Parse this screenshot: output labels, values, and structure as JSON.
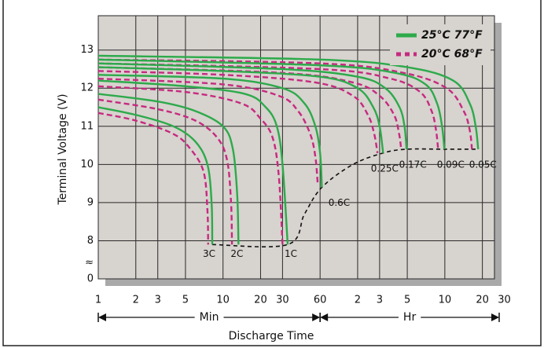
{
  "chart_data": {
    "type": "line",
    "y_label": "Terminal Voltage (V)",
    "x_label": "Discharge Time",
    "log_x": true,
    "grid": true,
    "legend": "top-right",
    "xlim": [
      1,
      1500
    ],
    "xticks": [
      1,
      2,
      3,
      5,
      10,
      20,
      30,
      60,
      {
        "value": 120,
        "label": "2"
      },
      {
        "value": 180,
        "label": "3"
      },
      {
        "value": 300,
        "label": "5"
      },
      {
        "value": 600,
        "label": "10"
      },
      {
        "value": 1200,
        "label": "20"
      },
      {
        "value": 1800,
        "label": "30"
      }
    ],
    "x_groups": [
      {
        "label": "Min",
        "from": 1,
        "to": 60
      },
      {
        "label": "Hr",
        "from": 60,
        "to": 1800
      }
    ],
    "ylim": [
      0,
      13.9
    ],
    "yticks": [
      0,
      8,
      9,
      10,
      11,
      12,
      13
    ],
    "y_break": {
      "label": "≈",
      "from": 0,
      "to": 7
    },
    "series": [
      {
        "name": "25°C 77°F",
        "color": "#2daa4b",
        "dashed": false,
        "curves": [
          {
            "label": "3C",
            "x": [
              1,
              2,
              4,
              6,
              7.5,
              8.1,
              8.2
            ],
            "values": [
              11.5,
              11.3,
              11.0,
              10.6,
              10.0,
              9.0,
              7.9
            ]
          },
          {
            "label": "2C",
            "x": [
              1,
              3,
              6,
              10,
              12,
              13,
              13.3
            ],
            "values": [
              11.85,
              11.65,
              11.4,
              11.0,
              10.4,
              9.2,
              7.9
            ]
          },
          {
            "label": "1C",
            "x": [
              1,
              5,
              15,
              22,
              27,
              30,
              33
            ],
            "values": [
              12.2,
              12.05,
              11.85,
              11.5,
              11.0,
              10.0,
              7.9
            ]
          },
          {
            "label": "0.6C",
            "x": [
              1,
              10,
              30,
              45,
              55,
              60,
              62
            ],
            "values": [
              12.35,
              12.25,
              12.0,
              11.6,
              11.0,
              10.3,
              9.4
            ]
          },
          {
            "label": "0.25C",
            "x": [
              1,
              10,
              60,
              120,
              160,
              180,
              192
            ],
            "values": [
              12.55,
              12.45,
              12.3,
              12.0,
              11.5,
              11.0,
              10.3
            ]
          },
          {
            "label": "0.17C",
            "x": [
              1,
              30,
              120,
              200,
              260,
              285,
              296
            ],
            "values": [
              12.65,
              12.5,
              12.3,
              12.0,
              11.5,
              11.0,
              10.4
            ]
          },
          {
            "label": "0.09C",
            "x": [
              1,
              60,
              240,
              420,
              520,
              570,
              595
            ],
            "values": [
              12.75,
              12.6,
              12.4,
              12.1,
              11.6,
              11.0,
              10.4
            ]
          },
          {
            "label": "0.05C",
            "x": [
              1,
              60,
              300,
              700,
              950,
              1060,
              1110
            ],
            "values": [
              12.85,
              12.75,
              12.55,
              12.2,
              11.6,
              11.0,
              10.4
            ]
          }
        ]
      },
      {
        "name": "20°C 68°F",
        "color": "#c62a80",
        "dashed": true,
        "curves": [
          {
            "x": [
              1,
              2,
              4,
              5.5,
              7,
              7.5,
              7.6
            ],
            "values": [
              11.35,
              11.15,
              10.8,
              10.4,
              9.8,
              8.8,
              7.9
            ]
          },
          {
            "x": [
              1,
              3,
              6,
              9,
              10.8,
              11.6,
              11.8
            ],
            "values": [
              11.7,
              11.45,
              11.15,
              10.7,
              10.1,
              9.0,
              7.9
            ]
          },
          {
            "x": [
              1,
              5,
              14,
              20,
              25,
              28,
              30
            ],
            "values": [
              12.05,
              11.9,
              11.6,
              11.2,
              10.7,
              9.7,
              7.9
            ]
          },
          {
            "x": [
              1,
              10,
              28,
              40,
              50,
              55,
              57.4
            ],
            "values": [
              12.25,
              12.1,
              11.8,
              11.4,
              10.8,
              10.2,
              9.5
            ]
          },
          {
            "x": [
              1,
              10,
              55,
              110,
              145,
              163,
              173
            ],
            "values": [
              12.45,
              12.35,
              12.15,
              11.8,
              11.3,
              10.8,
              10.3
            ]
          },
          {
            "x": [
              1,
              30,
              110,
              180,
              235,
              258,
              268
            ],
            "values": [
              12.55,
              12.4,
              12.15,
              11.8,
              11.3,
              10.8,
              10.4
            ]
          },
          {
            "x": [
              1,
              60,
              220,
              380,
              470,
              510,
              530
            ],
            "values": [
              12.65,
              12.5,
              12.25,
              11.9,
              11.4,
              10.9,
              10.4
            ]
          },
          {
            "x": [
              1,
              60,
              280,
              620,
              850,
              950,
              990
            ],
            "values": [
              12.75,
              12.65,
              12.4,
              12.0,
              11.4,
              10.9,
              10.4
            ]
          }
        ]
      }
    ],
    "end_voltage_line": {
      "color": "#111111",
      "x": [
        8.2,
        33,
        45,
        62,
        110,
        192,
        296,
        595,
        1110
      ],
      "values": [
        7.9,
        7.9,
        8.7,
        9.4,
        10.0,
        10.3,
        10.4,
        10.4,
        10.4
      ]
    }
  }
}
